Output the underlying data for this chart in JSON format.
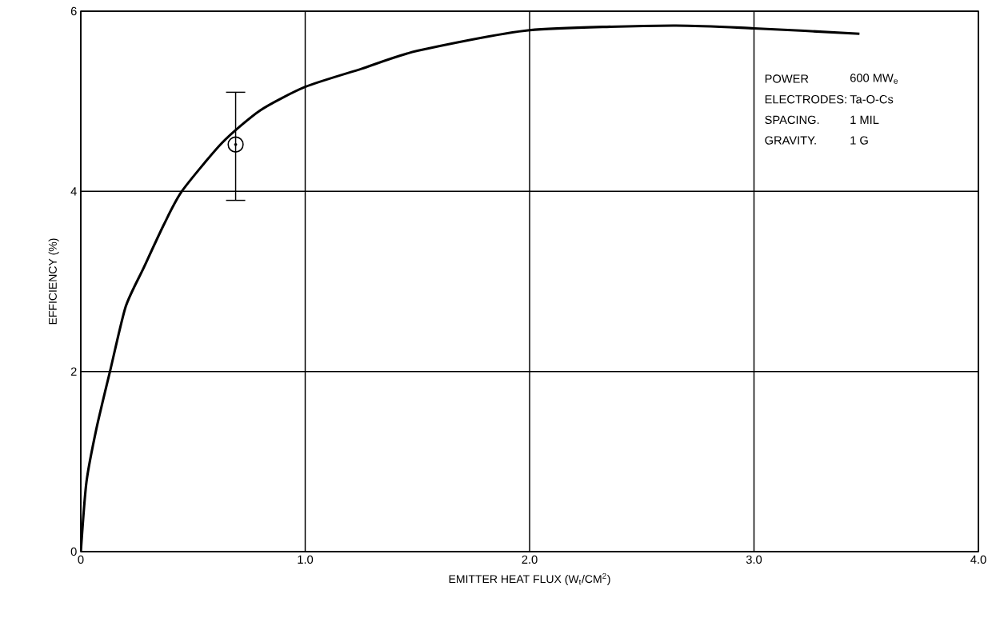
{
  "chart_data": {
    "type": "line",
    "xlabel": "EMITTER HEAT FLUX (W$_{t}$/CM$^{2}$)",
    "ylabel": "EFFICIENCY (%)",
    "xlim": [
      0,
      4
    ],
    "ylim": [
      0,
      6
    ],
    "xticks": [
      0,
      {
        "value": 1,
        "label": "1.0"
      },
      {
        "value": 2,
        "label": "2.0"
      },
      {
        "value": 3,
        "label": "3.0"
      },
      {
        "value": 4,
        "label": "4.0"
      }
    ],
    "yticks": [
      0,
      2,
      4,
      6
    ],
    "grid": true,
    "series": [
      {
        "color": "#000000",
        "marker": "none",
        "x": [
          0,
          0.025,
          0.07,
          0.13,
          0.2,
          0.28,
          0.37,
          0.45,
          0.63,
          0.8,
          1.0,
          1.25,
          1.5,
          2.0,
          2.64,
          3.0,
          3.47
        ],
        "values": [
          0,
          0.77,
          1.37,
          2.0,
          2.72,
          3.15,
          3.63,
          4.0,
          4.54,
          4.9,
          5.16,
          5.36,
          5.56,
          5.79,
          5.84,
          5.81,
          5.75
        ]
      },
      {
        "type": "scatter",
        "color": "#000000",
        "marker": "circle",
        "x": [
          0.69
        ],
        "values": [
          4.52
        ],
        "errors": [
          [
            3.9,
            5.1
          ]
        ]
      }
    ],
    "annotations": [
      "POWER",
      "600 MW$_{e}$",
      "ELECTRODES:",
      "Ta-O-Cs",
      "SPACING.",
      "1 MIL",
      "GRAVITY.",
      "1 G"
    ]
  }
}
